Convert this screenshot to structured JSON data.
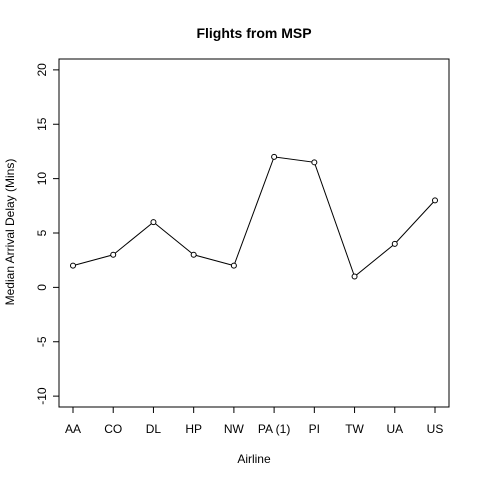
{
  "chart_data": {
    "type": "line",
    "title": "Flights from MSP",
    "xlabel": "Airline",
    "ylabel": "Median Arrival Delay (Mins)",
    "categories": [
      "AA",
      "CO",
      "DL",
      "HP",
      "NW",
      "PA (1)",
      "PI",
      "TW",
      "UA",
      "US"
    ],
    "values": [
      2,
      3,
      6,
      3,
      2,
      12,
      11.5,
      1,
      4,
      8
    ],
    "ylim": [
      -11,
      21
    ],
    "yticks": [
      -10,
      -5,
      0,
      5,
      10,
      15,
      20
    ],
    "grid": false,
    "legend": "none",
    "colors": {
      "line": "#000000",
      "point_stroke": "#000000",
      "point_fill": "#ffffff"
    }
  }
}
